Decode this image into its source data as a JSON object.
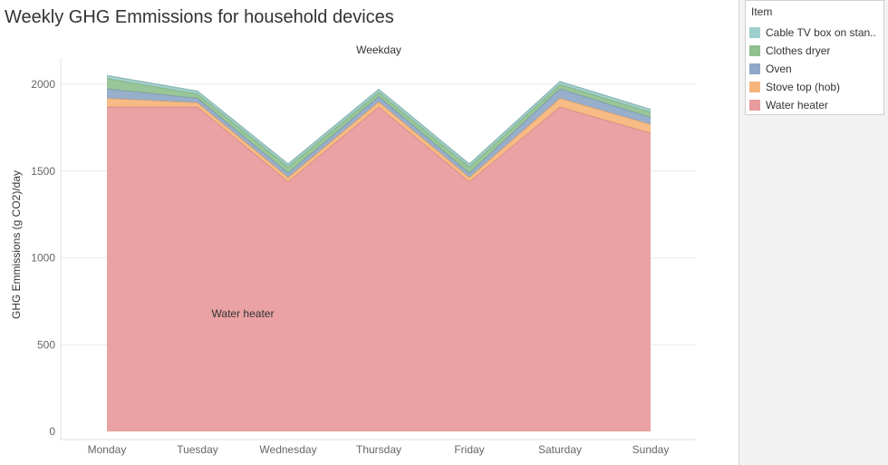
{
  "title": "Weekly GHG Emmissions for household devices",
  "chart_data": {
    "type": "area",
    "stacked": true,
    "header": "Weekday",
    "ylabel": "GHG Emmissions (g CO2)/day",
    "xlabel": "",
    "categories": [
      "Monday",
      "Tuesday",
      "Wednesday",
      "Thursday",
      "Friday",
      "Saturday",
      "Sunday"
    ],
    "ylim": [
      0,
      2150
    ],
    "yticks": [
      0,
      500,
      1000,
      1500,
      2000
    ],
    "grid": true,
    "series": [
      {
        "name": "Water heater",
        "color": "#e89a9c",
        "values": [
          1870,
          1870,
          1440,
          1870,
          1440,
          1870,
          1720
        ]
      },
      {
        "name": "Stove top (hob)",
        "color": "#f6b67b",
        "values": [
          50,
          25,
          25,
          30,
          25,
          50,
          50
        ]
      },
      {
        "name": "Oven",
        "color": "#8fa8c8",
        "values": [
          55,
          25,
          25,
          30,
          25,
          55,
          40
        ]
      },
      {
        "name": "Clothes dryer",
        "color": "#8fc18f",
        "values": [
          60,
          25,
          35,
          25,
          35,
          25,
          30
        ]
      },
      {
        "name": "Cable TV box on stan..",
        "color": "#9fcfcc",
        "values": [
          15,
          15,
          15,
          15,
          15,
          15,
          15
        ]
      }
    ],
    "annotations": [
      {
        "text": "Water heater",
        "category": "Tuesday",
        "value": 680
      }
    ]
  },
  "legend": {
    "title": "Item",
    "items": [
      {
        "label": "Cable TV box on stan..",
        "color": "#9fcfcc"
      },
      {
        "label": "Clothes dryer",
        "color": "#8fc18f"
      },
      {
        "label": "Oven",
        "color": "#8fa8c8"
      },
      {
        "label": "Stove top (hob)",
        "color": "#f6b67b"
      },
      {
        "label": "Water heater",
        "color": "#e89a9c"
      }
    ]
  }
}
